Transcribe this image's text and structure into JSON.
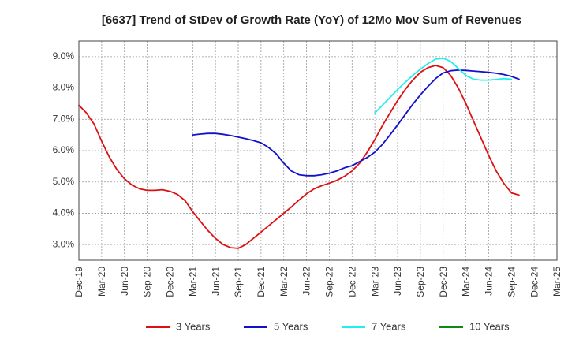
{
  "chart_data": {
    "type": "line",
    "title": "[6637]  Trend of StDev of Growth Rate (YoY) of 12Mo Mov Sum of Revenues",
    "xlabel": "",
    "ylabel": "",
    "ylim": [
      2.5,
      9.5
    ],
    "y_ticks": [
      3.0,
      4.0,
      5.0,
      6.0,
      7.0,
      8.0,
      9.0
    ],
    "y_tick_labels": [
      "3.0%",
      "4.0%",
      "5.0%",
      "6.0%",
      "7.0%",
      "8.0%",
      "9.0%"
    ],
    "x_tick_labels": [
      "Dec-19",
      "Mar-20",
      "Jun-20",
      "Sep-20",
      "Dec-20",
      "Mar-21",
      "Jun-21",
      "Sep-21",
      "Dec-21",
      "Mar-22",
      "Jun-22",
      "Sep-22",
      "Dec-22",
      "Mar-23",
      "Jun-23",
      "Sep-23",
      "Dec-23",
      "Mar-24",
      "Jun-24",
      "Sep-24",
      "Dec-24",
      "Mar-25"
    ],
    "x_months_per_tick": 3,
    "grid": true,
    "legend_position": "bottom",
    "series": [
      {
        "name": "3 Years",
        "color": "#dd1111",
        "start_month": 0,
        "values": [
          7.45,
          7.2,
          6.85,
          6.3,
          5.8,
          5.4,
          5.1,
          4.9,
          4.78,
          4.73,
          4.73,
          4.75,
          4.7,
          4.6,
          4.4,
          4.05,
          3.75,
          3.45,
          3.2,
          3.0,
          2.9,
          2.88,
          3.0,
          3.2,
          3.4,
          3.6,
          3.8,
          4.0,
          4.2,
          4.42,
          4.62,
          4.78,
          4.88,
          4.96,
          5.05,
          5.18,
          5.35,
          5.6,
          5.95,
          6.35,
          6.8,
          7.2,
          7.6,
          7.95,
          8.25,
          8.5,
          8.65,
          8.72,
          8.65,
          8.4,
          8.0,
          7.5,
          6.95,
          6.4,
          5.85,
          5.35,
          4.95,
          4.65,
          4.58
        ]
      },
      {
        "name": "5 Years",
        "color": "#1111cc",
        "start_month": 15,
        "values": [
          6.5,
          6.53,
          6.55,
          6.55,
          6.52,
          6.48,
          6.43,
          6.38,
          6.32,
          6.25,
          6.1,
          5.9,
          5.6,
          5.35,
          5.23,
          5.2,
          5.2,
          5.23,
          5.28,
          5.35,
          5.45,
          5.52,
          5.65,
          5.78,
          5.95,
          6.2,
          6.5,
          6.82,
          7.15,
          7.48,
          7.78,
          8.05,
          8.3,
          8.48,
          8.55,
          8.57,
          8.56,
          8.54,
          8.52,
          8.5,
          8.47,
          8.43,
          8.37,
          8.28
        ]
      },
      {
        "name": "7 Years",
        "color": "#22eeee",
        "start_month": 39,
        "values": [
          7.2,
          7.45,
          7.7,
          7.95,
          8.18,
          8.4,
          8.6,
          8.78,
          8.92,
          8.95,
          8.85,
          8.62,
          8.4,
          8.28,
          8.25,
          8.25,
          8.27,
          8.3,
          8.28
        ]
      },
      {
        "name": "10 Years",
        "color": "#118811",
        "start_month": 0,
        "values": []
      }
    ]
  }
}
